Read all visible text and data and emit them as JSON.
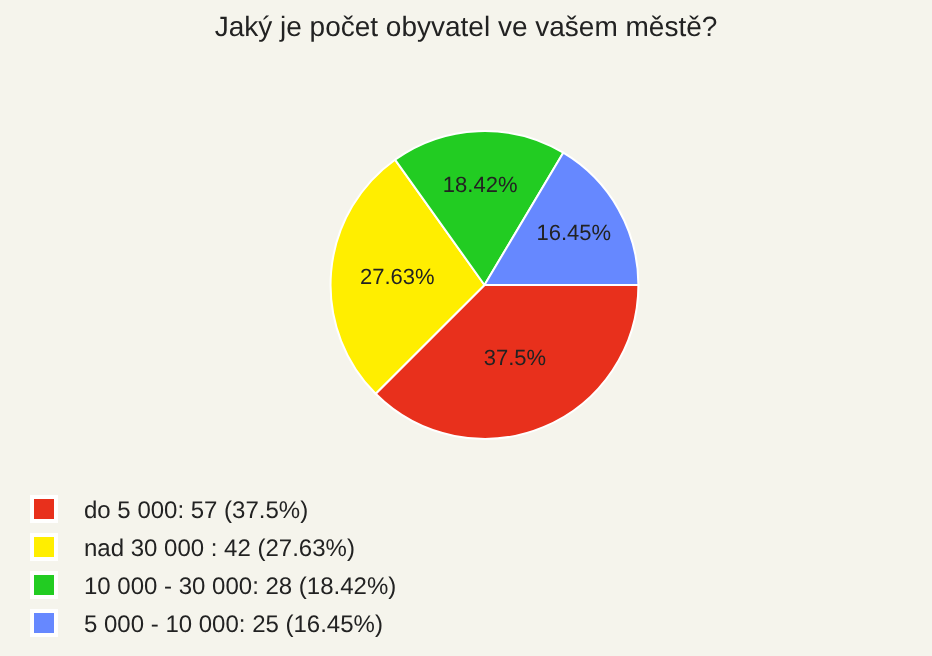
{
  "chart_data": {
    "type": "pie",
    "title": "Jaký je počet obyvatel ve vašem městě?",
    "categories": [
      "do 5 000: 57 (37.5%)",
      "nad 30 000 : 42 (27.63%)",
      "10 000 - 30 000: 28 (18.42%)",
      "5 000 - 10 000: 25 (16.45%)"
    ],
    "values": [
      37.5,
      27.63,
      18.42,
      16.45
    ],
    "value_labels": [
      "37.5%",
      "27.63%",
      "18.42%",
      "16.45%"
    ],
    "colors": [
      "#e8301c",
      "#ffee00",
      "#22cc22",
      "#6688ff"
    ],
    "legend": "bottom left"
  }
}
